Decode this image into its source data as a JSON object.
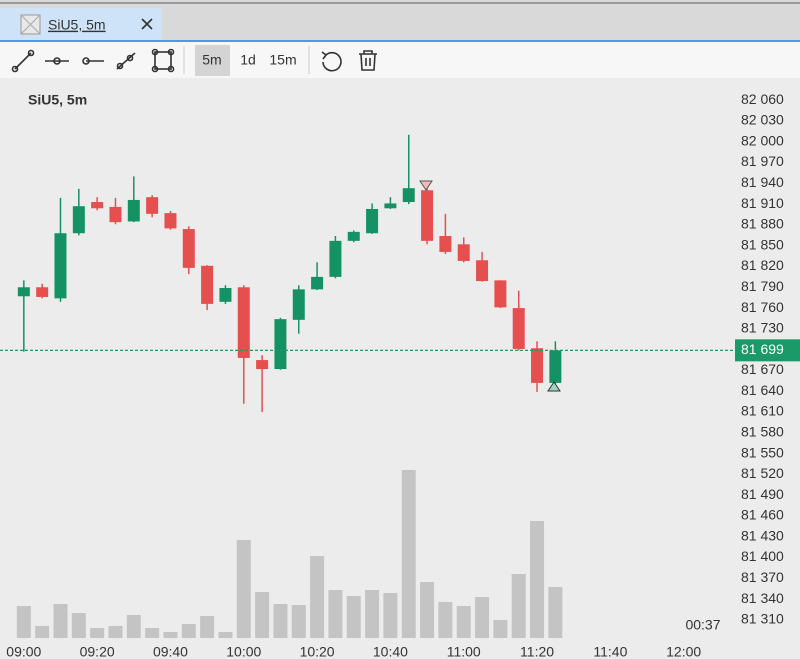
{
  "tab": {
    "title": "SiU5, 5m"
  },
  "toolbar": {
    "intervals": [
      "5m",
      "1d",
      "15m"
    ]
  },
  "chart_data": {
    "type": "candlestick",
    "title": "SiU5, 5m",
    "x": [
      540,
      545,
      550,
      555,
      560,
      565,
      570,
      575,
      580,
      585,
      590,
      595,
      600,
      605,
      610,
      615,
      620,
      625,
      630,
      635,
      640,
      645,
      650,
      655,
      660,
      665,
      670,
      675,
      680,
      685
    ],
    "xlim": [
      533.5,
      734
    ],
    "xticks": [
      {
        "value": 540,
        "label": "09:00"
      },
      {
        "value": 560,
        "label": "09:20"
      },
      {
        "value": 580,
        "label": "09:40"
      },
      {
        "value": 600,
        "label": "10:00"
      },
      {
        "value": 620,
        "label": "10:20"
      },
      {
        "value": 640,
        "label": "10:40"
      },
      {
        "value": 660,
        "label": "11:00"
      },
      {
        "value": 680,
        "label": "11:20"
      },
      {
        "value": 700,
        "label": "11:40"
      },
      {
        "value": 720,
        "label": "12:00"
      }
    ],
    "open": [
      81777,
      81790,
      81774,
      81868,
      81913,
      81906,
      81885,
      81920,
      81897,
      81874,
      81821,
      81769,
      81790,
      81685,
      81672,
      81743,
      81787,
      81805,
      81857,
      81868,
      81904,
      81913,
      81930,
      81864,
      81852,
      81829,
      81800,
      81760,
      81702,
      81652
    ],
    "high": [
      81800,
      81795,
      81919,
      81932,
      81920,
      81919,
      81950,
      81923,
      81900,
      81878,
      81822,
      81793,
      81793,
      81692,
      81746,
      81793,
      81826,
      81864,
      81872,
      81911,
      81920,
      82010,
      81942,
      81896,
      81862,
      81841,
      81800,
      81785,
      81712,
      81712
    ],
    "low": [
      81697,
      81774,
      81769,
      81865,
      81901,
      81881,
      81884,
      81891,
      81873,
      81809,
      81757,
      81766,
      81622,
      81610,
      81671,
      81723,
      81786,
      81803,
      81855,
      81867,
      81903,
      81910,
      81852,
      81838,
      81826,
      81798,
      81760,
      81699,
      81639,
      81650
    ],
    "close": [
      81790,
      81776,
      81868,
      81907,
      81904,
      81884,
      81916,
      81896,
      81875,
      81818,
      81766,
      81789,
      81688,
      81672,
      81744,
      81787,
      81805,
      81857,
      81870,
      81903,
      81911,
      81933,
      81857,
      81841,
      81828,
      81799,
      81761,
      81701,
      81652,
      81699
    ],
    "volume": [
      32,
      12,
      34,
      25,
      10,
      12,
      23,
      10,
      6,
      14,
      22,
      6,
      98,
      46,
      34,
      33,
      82,
      48,
      42,
      48,
      45,
      168,
      56,
      36,
      32,
      41,
      18,
      64,
      117,
      51
    ],
    "ylim": [
      81281,
      82092
    ],
    "yticks": [
      {
        "value": 82060,
        "label": "82 060"
      },
      {
        "value": 82030,
        "label": "82 030"
      },
      {
        "value": 82000,
        "label": "82 000"
      },
      {
        "value": 81970,
        "label": "81 970"
      },
      {
        "value": 81940,
        "label": "81 940"
      },
      {
        "value": 81910,
        "label": "81 910"
      },
      {
        "value": 81880,
        "label": "81 880"
      },
      {
        "value": 81850,
        "label": "81 850"
      },
      {
        "value": 81820,
        "label": "81 820"
      },
      {
        "value": 81790,
        "label": "81 790"
      },
      {
        "value": 81760,
        "label": "81 760"
      },
      {
        "value": 81730,
        "label": "81 730"
      },
      {
        "value": 81670,
        "label": "81 670"
      },
      {
        "value": 81640,
        "label": "81 640"
      },
      {
        "value": 81610,
        "label": "81 610"
      },
      {
        "value": 81580,
        "label": "81 580"
      },
      {
        "value": 81550,
        "label": "81 550"
      },
      {
        "value": 81520,
        "label": "81 520"
      },
      {
        "value": 81490,
        "label": "81 490"
      },
      {
        "value": 81460,
        "label": "81 460"
      },
      {
        "value": 81430,
        "label": "81 430"
      },
      {
        "value": 81400,
        "label": "81 400"
      },
      {
        "value": 81370,
        "label": "81 370"
      },
      {
        "value": 81340,
        "label": "81 340"
      },
      {
        "value": 81310,
        "label": "81 310"
      }
    ],
    "up_color": "#149263",
    "down_color": "#e5504f",
    "volume_color": "#c4c4c4",
    "last_price": {
      "value": 81699,
      "label": "81 699",
      "color": "#1a9a68"
    },
    "timer": "00:37"
  }
}
